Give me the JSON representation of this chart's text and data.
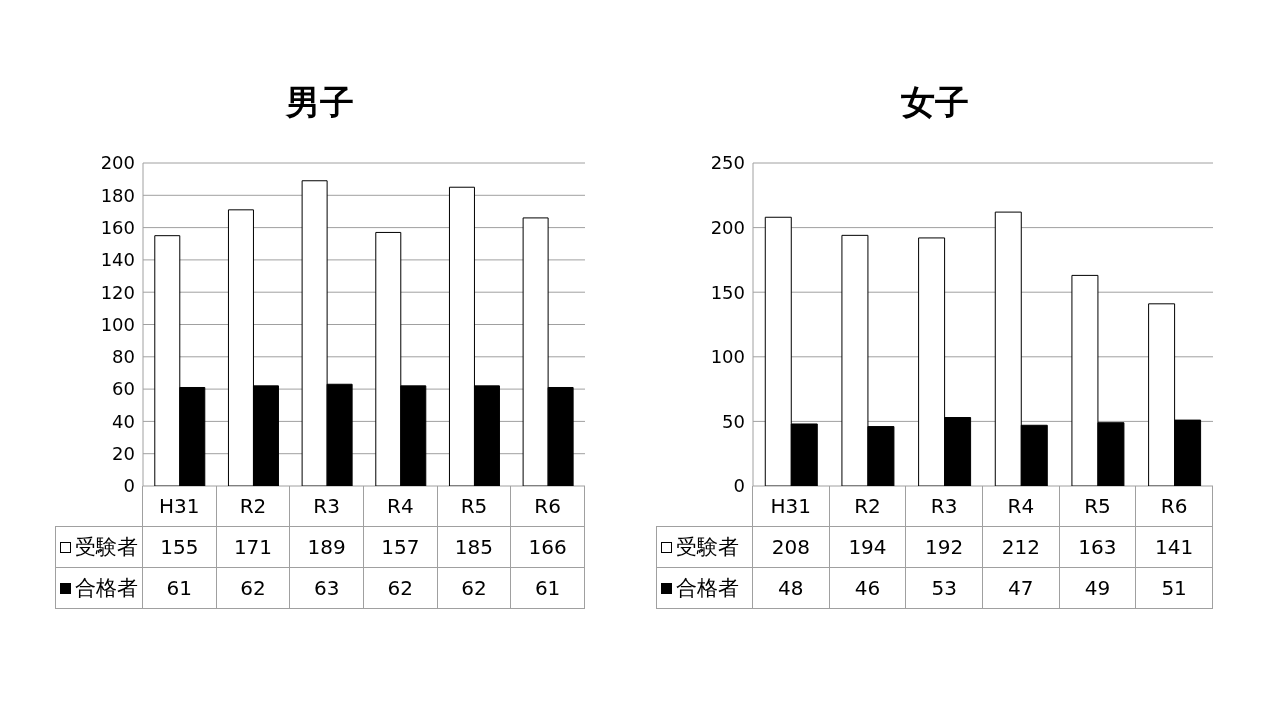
{
  "chart_data": [
    {
      "type": "bar",
      "title": "男子",
      "categories": [
        "H31",
        "R2",
        "R3",
        "R4",
        "R5",
        "R6"
      ],
      "series": [
        {
          "name": "受験者",
          "color": "#ffffff",
          "values": [
            155,
            171,
            189,
            157,
            185,
            166
          ]
        },
        {
          "name": "合格者",
          "color": "#000000",
          "values": [
            61,
            62,
            63,
            62,
            62,
            61
          ]
        }
      ],
      "ylim": [
        0,
        200
      ],
      "yticks": [
        0,
        20,
        40,
        60,
        80,
        100,
        120,
        140,
        160,
        180,
        200
      ],
      "grid": "y",
      "legend": "bottom left",
      "data_labels": true
    },
    {
      "type": "bar",
      "title": "女子",
      "categories": [
        "H31",
        "R2",
        "R3",
        "R4",
        "R5",
        "R6"
      ],
      "series": [
        {
          "name": "受験者",
          "color": "#ffffff",
          "values": [
            208,
            194,
            192,
            212,
            163,
            141
          ]
        },
        {
          "name": "合格者",
          "color": "#000000",
          "values": [
            48,
            46,
            53,
            47,
            49,
            51
          ]
        }
      ],
      "ylim": [
        0,
        250
      ],
      "yticks": [
        0,
        50,
        100,
        150,
        200,
        250
      ],
      "grid": "y",
      "legend": "bottom left",
      "data_labels": true
    }
  ]
}
